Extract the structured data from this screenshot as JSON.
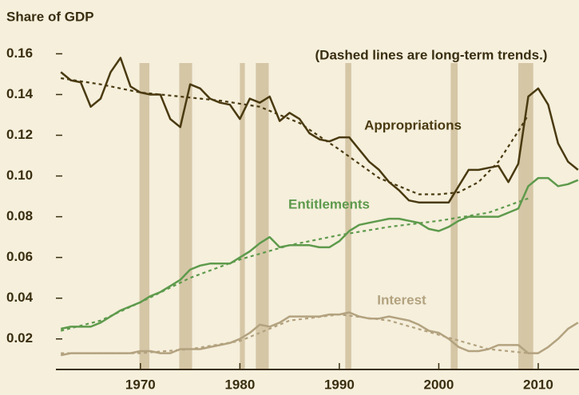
{
  "chart_data": {
    "type": "line",
    "ylabel": "Share of GDP",
    "annotation": "(Dashed lines are long-term trends.)",
    "xlim": [
      1961.5,
      2014.1
    ],
    "xticks": [
      1970,
      1980,
      1990,
      2000,
      2010
    ],
    "ylim": [
      0.005,
      0.168
    ],
    "yticks": [
      0.02,
      0.04,
      0.06,
      0.08,
      0.1,
      0.12,
      0.14,
      0.16
    ],
    "ytick_labels": [
      "0.02",
      "0.04",
      "0.06",
      "0.08",
      "0.10",
      "0.12",
      "0.14",
      "0.16"
    ],
    "shaded_ranges": [
      [
        1969.9,
        1970.9
      ],
      [
        1973.9,
        1975.2
      ],
      [
        1980.0,
        1980.5
      ],
      [
        1981.6,
        1982.9
      ],
      [
        1990.6,
        1991.2
      ],
      [
        2001.2,
        2001.9
      ],
      [
        2008.0,
        2009.5
      ]
    ],
    "shade_color": "#d5c6a6",
    "x": [
      1962,
      1963,
      1964,
      1965,
      1966,
      1967,
      1968,
      1969,
      1970,
      1971,
      1972,
      1973,
      1974,
      1975,
      1976,
      1977,
      1978,
      1979,
      1980,
      1981,
      1982,
      1983,
      1984,
      1985,
      1986,
      1987,
      1988,
      1989,
      1990,
      1991,
      1992,
      1993,
      1994,
      1995,
      1996,
      1997,
      1998,
      1999,
      2000,
      2001,
      2002,
      2003,
      2004,
      2005,
      2006,
      2007,
      2008,
      2009,
      2010,
      2011,
      2012,
      2013,
      2014
    ],
    "series": [
      {
        "name": "Appropriations",
        "color": "#4a3a10",
        "values": [
          0.151,
          0.147,
          0.146,
          0.134,
          0.138,
          0.151,
          0.158,
          0.144,
          0.141,
          0.14,
          0.14,
          0.128,
          0.124,
          0.145,
          0.143,
          0.138,
          0.136,
          0.135,
          0.128,
          0.138,
          0.136,
          0.139,
          0.127,
          0.131,
          0.128,
          0.121,
          0.118,
          0.117,
          0.119,
          0.119,
          0.113,
          0.107,
          0.103,
          0.097,
          0.093,
          0.088,
          0.087,
          0.087,
          0.087,
          0.087,
          0.095,
          0.103,
          0.103,
          0.104,
          0.105,
          0.097,
          0.106,
          0.139,
          0.143,
          0.135,
          0.116,
          0.107,
          0.103
        ]
      },
      {
        "name": "Entitlements",
        "color": "#5e9a4c",
        "values": [
          0.025,
          0.026,
          0.026,
          0.026,
          0.028,
          0.031,
          0.034,
          0.036,
          0.038,
          0.041,
          0.043,
          0.046,
          0.049,
          0.054,
          0.056,
          0.057,
          0.057,
          0.057,
          0.06,
          0.063,
          0.067,
          0.07,
          0.065,
          0.066,
          0.066,
          0.066,
          0.065,
          0.065,
          0.068,
          0.073,
          0.076,
          0.077,
          0.078,
          0.079,
          0.079,
          0.078,
          0.077,
          0.074,
          0.073,
          0.075,
          0.078,
          0.08,
          0.08,
          0.08,
          0.08,
          0.082,
          0.084,
          0.095,
          0.099,
          0.099,
          0.095,
          0.096,
          0.098
        ]
      },
      {
        "name": "Interest",
        "color": "#b3a27f",
        "values": [
          0.012,
          0.013,
          0.013,
          0.013,
          0.013,
          0.013,
          0.013,
          0.013,
          0.014,
          0.014,
          0.013,
          0.013,
          0.015,
          0.015,
          0.015,
          0.016,
          0.017,
          0.018,
          0.02,
          0.023,
          0.027,
          0.026,
          0.028,
          0.031,
          0.031,
          0.031,
          0.031,
          0.032,
          0.032,
          0.033,
          0.031,
          0.03,
          0.03,
          0.031,
          0.03,
          0.029,
          0.027,
          0.024,
          0.023,
          0.02,
          0.016,
          0.014,
          0.014,
          0.015,
          0.017,
          0.017,
          0.017,
          0.013,
          0.013,
          0.016,
          0.02,
          0.025,
          0.028
        ]
      }
    ],
    "trend_lines": [
      {
        "color": "#4a3a10",
        "x": [
          1962,
          1966,
          1970,
          1974,
          1978,
          1982,
          1986,
          1990,
          1994,
          1998,
          2000,
          2002,
          2004,
          2006,
          2008,
          2009
        ],
        "values": [
          0.148,
          0.145,
          0.141,
          0.139,
          0.137,
          0.134,
          0.126,
          0.113,
          0.099,
          0.091,
          0.091,
          0.092,
          0.097,
          0.107,
          0.122,
          0.13
        ]
      },
      {
        "color": "#5e9a4c",
        "x": [
          1962,
          1966,
          1970,
          1975,
          1980,
          1985,
          1990,
          1995,
          2000,
          2005,
          2009
        ],
        "values": [
          0.024,
          0.029,
          0.038,
          0.05,
          0.059,
          0.066,
          0.071,
          0.075,
          0.078,
          0.082,
          0.089
        ]
      },
      {
        "color": "#b3a27f",
        "x": [
          1962,
          1970,
          1975,
          1980,
          1985,
          1990,
          1995,
          2000,
          2005,
          2009
        ],
        "values": [
          0.013,
          0.013,
          0.015,
          0.019,
          0.029,
          0.032,
          0.029,
          0.022,
          0.015,
          0.013
        ]
      }
    ]
  }
}
